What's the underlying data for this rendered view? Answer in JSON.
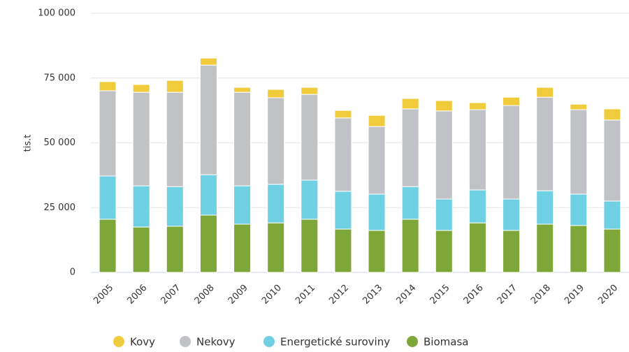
{
  "chart_data": {
    "type": "stacked_bar",
    "y_label": "tis.t",
    "categories": [
      "2005",
      "2006",
      "2007",
      "2008",
      "2009",
      "2010",
      "2011",
      "2012",
      "2013",
      "2014",
      "2015",
      "2016",
      "2017",
      "2018",
      "2019",
      "2020"
    ],
    "series": [
      {
        "name": "Kovy",
        "color": "#f0cb3c",
        "values": [
          3500,
          3000,
          4600,
          2700,
          1900,
          3200,
          2700,
          2900,
          4300,
          4000,
          4000,
          2700,
          3200,
          3800,
          2100,
          4300
        ]
      },
      {
        "name": "Nekovy",
        "color": "#c0c2c5",
        "values": [
          32900,
          36100,
          36400,
          42300,
          36100,
          33400,
          33100,
          28300,
          26100,
          30000,
          34000,
          31000,
          36100,
          36100,
          32600,
          31300
        ]
      },
      {
        "name": "Energetické suroviny",
        "color": "#6fcfe3",
        "values": [
          16700,
          15900,
          15300,
          15600,
          14800,
          14900,
          15100,
          14600,
          14000,
          12600,
          12100,
          12700,
          12100,
          12900,
          12100,
          10800
        ]
      },
      {
        "name": "Biomasa",
        "color": "#7ea73a",
        "values": [
          20500,
          17500,
          17800,
          22100,
          18600,
          19100,
          20500,
          16700,
          16200,
          20500,
          16200,
          19100,
          16200,
          18600,
          18100,
          16700
        ]
      }
    ],
    "ylim": [
      0,
      100000
    ],
    "yticks": [
      0,
      {
        "value": 25000,
        "label": "25 000"
      },
      {
        "value": 50000,
        "label": "50 000"
      },
      {
        "value": 75000,
        "label": "75 000"
      },
      {
        "value": 100000,
        "label": "100 000"
      }
    ],
    "grid": true,
    "legend": "bottom"
  }
}
